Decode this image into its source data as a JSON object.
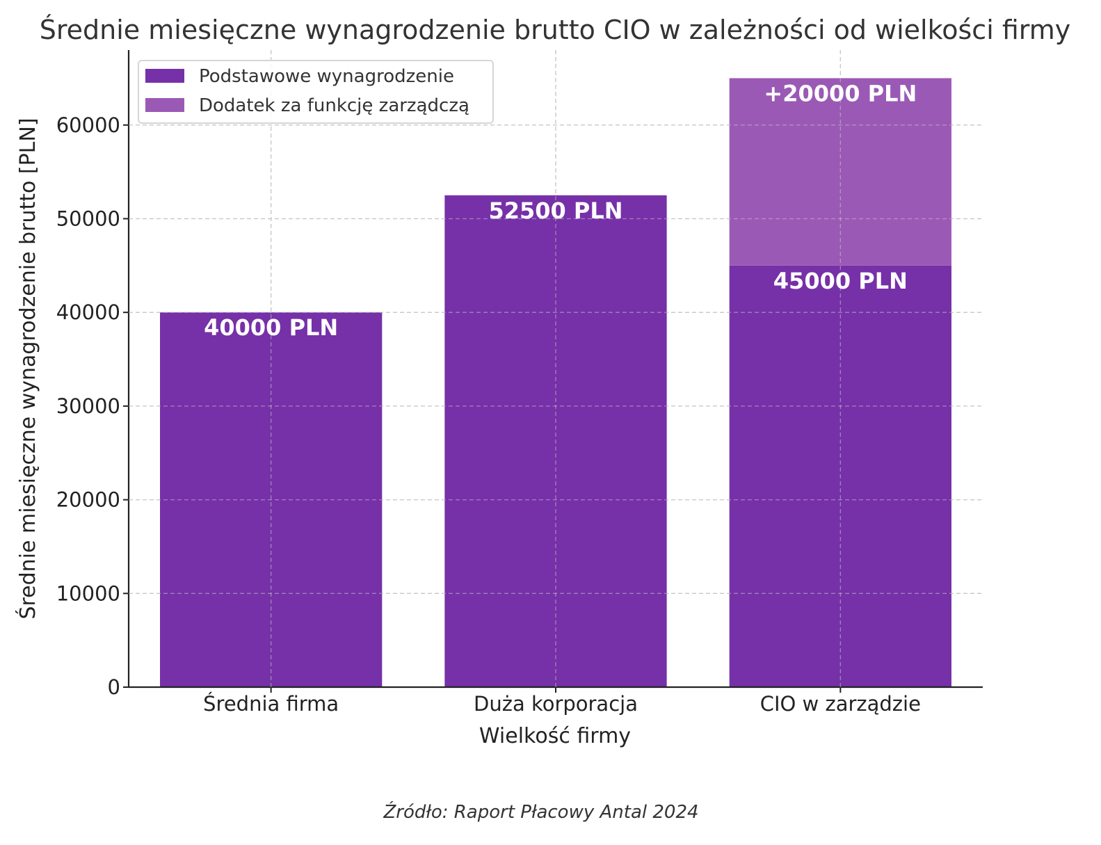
{
  "chart_data": {
    "type": "bar",
    "stacked": true,
    "title": "Średnie miesięczne wynagrodzenie brutto CIO w zależności od wielkości firmy",
    "xlabel": "Wielkość firmy",
    "ylabel": "Średnie miesięczne wynagrodzenie brutto [PLN]",
    "categories": [
      "Średnia firma",
      "Duża korporacja",
      "CIO w zarządzie"
    ],
    "ylim": [
      0,
      68000
    ],
    "yticks": [
      "0",
      "10000",
      "20000",
      "30000",
      "40000",
      "50000",
      "60000"
    ],
    "grid": true,
    "legend_position": "top-left",
    "series": [
      {
        "name": "Podstawowe wynagrodzenie",
        "color": "#7630a8",
        "values": [
          40000,
          52500,
          45000
        ],
        "labels": [
          "40000 PLN",
          "52500 PLN",
          "45000 PLN"
        ]
      },
      {
        "name": "Dodatek za funkcję zarządczą",
        "color": "#9b59b6",
        "values": [
          0,
          0,
          20000
        ],
        "labels": [
          "",
          "",
          "+20000 PLN"
        ]
      }
    ]
  },
  "source": "Źródło: Raport Płacowy Antal 2024"
}
